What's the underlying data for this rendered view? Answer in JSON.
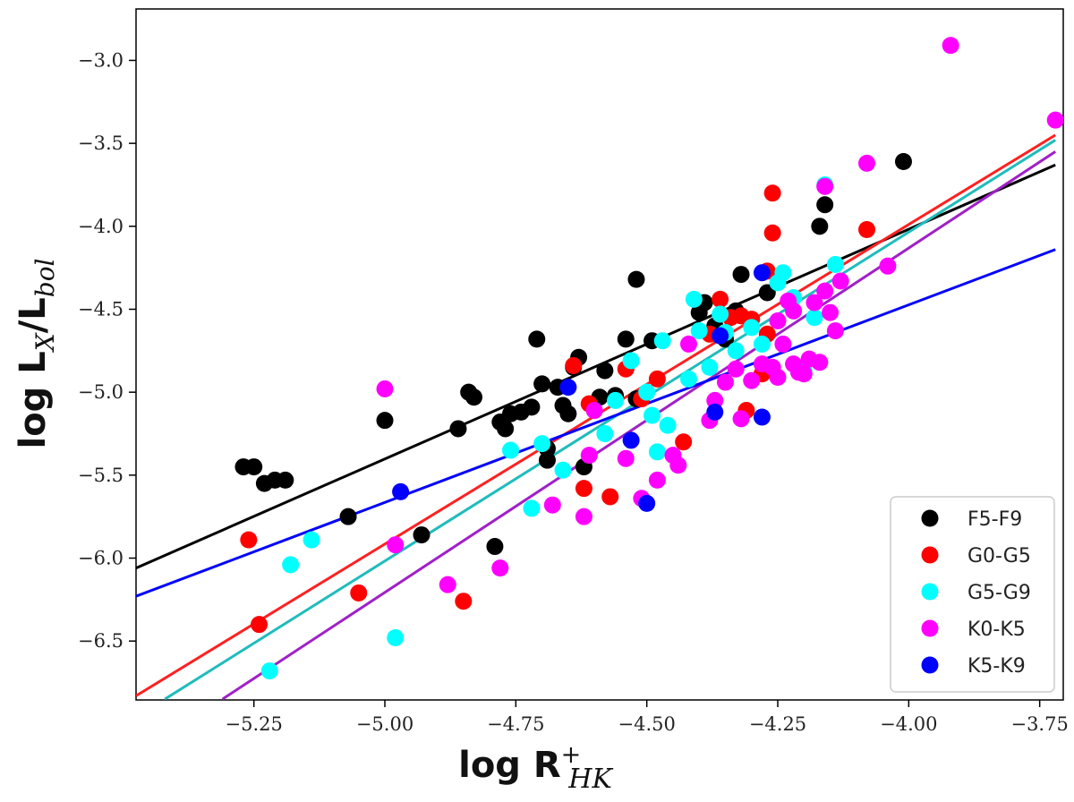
{
  "chart_data": {
    "type": "scatter",
    "xlabel": {
      "main": "log R",
      "sup": "+",
      "sub": "HK"
    },
    "ylabel": {
      "main": "log L",
      "sub1": "X",
      "slash": "/L",
      "sub2": "bol"
    },
    "xlim": [
      -5.475,
      -3.705
    ],
    "ylim": [
      -6.855,
      -2.69
    ],
    "xticks": [
      -5.25,
      -5.0,
      -4.75,
      -4.5,
      -4.25,
      -4.0,
      -3.75
    ],
    "xtick_labels": [
      "−5.25",
      "−5.00",
      "−4.75",
      "−4.50",
      "−4.25",
      "−4.00",
      "−3.75"
    ],
    "yticks": [
      -6.5,
      -6.0,
      -5.5,
      -5.0,
      -4.5,
      -4.0,
      -3.5,
      -3.0
    ],
    "ytick_labels": [
      "−6.5",
      "−6.0",
      "−5.5",
      "−5.0",
      "−4.5",
      "−4.0",
      "−3.5",
      "−3.0"
    ],
    "legend_position": "bottom-right",
    "series": [
      {
        "name": "F5-F9",
        "color": "#000000",
        "fit": {
          "x": [
            -5.475,
            -3.72
          ],
          "y": [
            -6.06,
            -3.63
          ]
        },
        "points": [
          [
            -5.27,
            -5.45
          ],
          [
            -5.25,
            -5.45
          ],
          [
            -5.23,
            -5.55
          ],
          [
            -5.21,
            -5.53
          ],
          [
            -5.19,
            -5.53
          ],
          [
            -5.07,
            -5.75
          ],
          [
            -5.0,
            -5.17
          ],
          [
            -4.93,
            -5.86
          ],
          [
            -4.86,
            -5.22
          ],
          [
            -4.84,
            -5.0
          ],
          [
            -4.83,
            -5.03
          ],
          [
            -4.79,
            -5.93
          ],
          [
            -4.78,
            -5.18
          ],
          [
            -4.77,
            -5.22
          ],
          [
            -4.76,
            -5.13
          ],
          [
            -4.74,
            -5.12
          ],
          [
            -4.72,
            -5.09
          ],
          [
            -4.71,
            -4.68
          ],
          [
            -4.7,
            -4.95
          ],
          [
            -4.69,
            -5.34
          ],
          [
            -4.69,
            -5.41
          ],
          [
            -4.67,
            -4.97
          ],
          [
            -4.66,
            -5.08
          ],
          [
            -4.65,
            -5.13
          ],
          [
            -4.64,
            -4.85
          ],
          [
            -4.63,
            -4.79
          ],
          [
            -4.62,
            -5.45
          ],
          [
            -4.59,
            -5.03
          ],
          [
            -4.58,
            -4.87
          ],
          [
            -4.56,
            -5.02
          ],
          [
            -4.54,
            -4.68
          ],
          [
            -4.52,
            -4.32
          ],
          [
            -4.52,
            -5.04
          ],
          [
            -4.49,
            -4.69
          ],
          [
            -4.4,
            -4.52
          ],
          [
            -4.39,
            -4.46
          ],
          [
            -4.37,
            -4.6
          ],
          [
            -4.35,
            -4.68
          ],
          [
            -4.33,
            -4.51
          ],
          [
            -4.32,
            -4.29
          ],
          [
            -4.27,
            -4.4
          ],
          [
            -4.17,
            -4.0
          ],
          [
            -4.16,
            -3.87
          ],
          [
            -4.01,
            -3.61
          ]
        ]
      },
      {
        "name": "G0-G5",
        "color": "#ff0000",
        "fit": {
          "x": [
            -5.475,
            -3.72
          ],
          "y": [
            -6.83,
            -3.45
          ]
        },
        "points": [
          [
            -5.26,
            -5.89
          ],
          [
            -5.24,
            -6.4
          ],
          [
            -5.05,
            -6.21
          ],
          [
            -4.85,
            -6.26
          ],
          [
            -4.64,
            -4.84
          ],
          [
            -4.62,
            -5.58
          ],
          [
            -4.61,
            -5.07
          ],
          [
            -4.57,
            -5.63
          ],
          [
            -4.54,
            -4.86
          ],
          [
            -4.51,
            -5.04
          ],
          [
            -4.48,
            -4.92
          ],
          [
            -4.43,
            -5.3
          ],
          [
            -4.38,
            -4.65
          ],
          [
            -4.36,
            -4.44
          ],
          [
            -4.34,
            -4.55
          ],
          [
            -4.32,
            -4.54
          ],
          [
            -4.31,
            -5.11
          ],
          [
            -4.3,
            -4.56
          ],
          [
            -4.28,
            -4.89
          ],
          [
            -4.27,
            -4.65
          ],
          [
            -4.27,
            -4.27
          ],
          [
            -4.26,
            -4.04
          ],
          [
            -4.26,
            -3.8
          ],
          [
            -4.08,
            -4.02
          ]
        ]
      },
      {
        "name": "G5-G9",
        "color": "#00ffff",
        "fit": {
          "x": [
            -5.42,
            -3.72
          ],
          "y": [
            -6.85,
            -3.48
          ]
        },
        "points": [
          [
            -5.22,
            -6.68
          ],
          [
            -5.18,
            -6.04
          ],
          [
            -5.14,
            -5.89
          ],
          [
            -4.98,
            -6.48
          ],
          [
            -4.76,
            -5.35
          ],
          [
            -4.72,
            -5.7
          ],
          [
            -4.7,
            -5.31
          ],
          [
            -4.66,
            -5.47
          ],
          [
            -4.58,
            -5.25
          ],
          [
            -4.56,
            -5.05
          ],
          [
            -4.53,
            -4.81
          ],
          [
            -4.5,
            -5.0
          ],
          [
            -4.49,
            -5.14
          ],
          [
            -4.48,
            -5.36
          ],
          [
            -4.47,
            -4.69
          ],
          [
            -4.46,
            -5.2
          ],
          [
            -4.42,
            -4.92
          ],
          [
            -4.41,
            -4.44
          ],
          [
            -4.4,
            -4.63
          ],
          [
            -4.38,
            -4.85
          ],
          [
            -4.36,
            -4.53
          ],
          [
            -4.35,
            -4.64
          ],
          [
            -4.33,
            -4.75
          ],
          [
            -4.3,
            -4.61
          ],
          [
            -4.28,
            -4.71
          ],
          [
            -4.25,
            -4.34
          ],
          [
            -4.24,
            -4.28
          ],
          [
            -4.22,
            -4.43
          ],
          [
            -4.2,
            -4.87
          ],
          [
            -4.18,
            -4.55
          ],
          [
            -4.16,
            -3.75
          ],
          [
            -4.14,
            -4.23
          ]
        ]
      },
      {
        "name": "K0-K5",
        "color": "#ff00ff",
        "fit": {
          "x": [
            -5.31,
            -3.72
          ],
          "y": [
            -6.85,
            -3.55
          ]
        },
        "points": [
          [
            -5.0,
            -4.98
          ],
          [
            -4.98,
            -5.92
          ],
          [
            -4.88,
            -6.16
          ],
          [
            -4.78,
            -6.06
          ],
          [
            -4.68,
            -5.68
          ],
          [
            -4.62,
            -5.75
          ],
          [
            -4.61,
            -5.38
          ],
          [
            -4.6,
            -5.11
          ],
          [
            -4.54,
            -5.4
          ],
          [
            -4.51,
            -5.64
          ],
          [
            -4.48,
            -5.53
          ],
          [
            -4.45,
            -5.38
          ],
          [
            -4.44,
            -5.44
          ],
          [
            -4.42,
            -4.71
          ],
          [
            -4.38,
            -5.17
          ],
          [
            -4.37,
            -5.05
          ],
          [
            -4.35,
            -4.94
          ],
          [
            -4.33,
            -4.86
          ],
          [
            -4.32,
            -5.16
          ],
          [
            -4.3,
            -4.93
          ],
          [
            -4.28,
            -4.83
          ],
          [
            -4.26,
            -4.85
          ],
          [
            -4.25,
            -4.57
          ],
          [
            -4.25,
            -4.91
          ],
          [
            -4.24,
            -4.71
          ],
          [
            -4.23,
            -4.45
          ],
          [
            -4.22,
            -4.51
          ],
          [
            -4.22,
            -4.83
          ],
          [
            -4.21,
            -4.88
          ],
          [
            -4.2,
            -4.89
          ],
          [
            -4.19,
            -4.8
          ],
          [
            -4.18,
            -4.46
          ],
          [
            -4.17,
            -4.82
          ],
          [
            -4.16,
            -4.39
          ],
          [
            -4.15,
            -4.52
          ],
          [
            -4.14,
            -4.63
          ],
          [
            -4.13,
            -4.33
          ],
          [
            -4.16,
            -3.76
          ],
          [
            -4.08,
            -3.62
          ],
          [
            -4.04,
            -4.24
          ],
          [
            -3.92,
            -2.91
          ],
          [
            -3.72,
            -3.36
          ]
        ]
      },
      {
        "name": "K5-K9",
        "color": "#0000ff",
        "fit": {
          "x": [
            -5.475,
            -3.72
          ],
          "y": [
            -6.23,
            -4.14
          ]
        },
        "points": [
          [
            -4.97,
            -5.6
          ],
          [
            -4.65,
            -4.97
          ],
          [
            -4.53,
            -5.29
          ],
          [
            -4.5,
            -5.67
          ],
          [
            -4.37,
            -5.12
          ],
          [
            -4.36,
            -4.66
          ],
          [
            -4.28,
            -4.28
          ],
          [
            -4.28,
            -5.15
          ]
        ]
      }
    ],
    "fit_line_colors": {
      "F5-F9": "#000000",
      "G0-G5": "#ff2020",
      "G5-G9": "#1fbcbc",
      "K0-K5": "#a020c8",
      "K5-K9": "#0000ff"
    }
  }
}
